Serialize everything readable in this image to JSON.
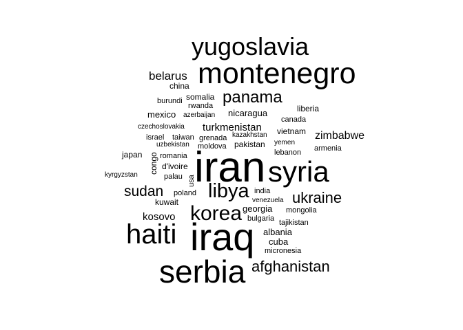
{
  "chart_data": {
    "type": "wordcloud",
    "title": "",
    "words": [
      {
        "text": "iran",
        "weight": 100
      },
      {
        "text": "iraq",
        "weight": 86
      },
      {
        "text": "serbia",
        "weight": 70
      },
      {
        "text": "montenegro",
        "weight": 65
      },
      {
        "text": "syria",
        "weight": 64
      },
      {
        "text": "haiti",
        "weight": 60
      },
      {
        "text": "yugoslavia",
        "weight": 55
      },
      {
        "text": "korea",
        "weight": 45
      },
      {
        "text": "libya",
        "weight": 44
      },
      {
        "text": "panama",
        "weight": 36
      },
      {
        "text": "afghanistan",
        "weight": 33
      },
      {
        "text": "ukraine",
        "weight": 33
      },
      {
        "text": "sudan",
        "weight": 31
      },
      {
        "text": "belarus",
        "weight": 27
      },
      {
        "text": "zimbabwe",
        "weight": 25
      },
      {
        "text": "turkmenistan",
        "weight": 23
      },
      {
        "text": "kosovo",
        "weight": 23
      },
      {
        "text": "cuba",
        "weight": 20
      },
      {
        "text": "mexico",
        "weight": 20
      },
      {
        "text": "nicaragua",
        "weight": 20
      },
      {
        "text": "georgia",
        "weight": 20
      },
      {
        "text": "albania",
        "weight": 20
      },
      {
        "text": "china",
        "weight": 19
      },
      {
        "text": "japan",
        "weight": 19
      },
      {
        "text": "liberia",
        "weight": 19
      },
      {
        "text": "pakistan",
        "weight": 19
      },
      {
        "text": "vietnam",
        "weight": 19
      },
      {
        "text": "d'ivoire",
        "weight": 19
      },
      {
        "text": "somalia",
        "weight": 19
      },
      {
        "text": "kuwait",
        "weight": 19
      },
      {
        "text": "congo",
        "weight": 17
      },
      {
        "text": "israel",
        "weight": 17
      },
      {
        "text": "rwanda",
        "weight": 17
      },
      {
        "text": "taiwan",
        "weight": 17
      },
      {
        "text": "canada",
        "weight": 16
      },
      {
        "text": "grenada",
        "weight": 16
      },
      {
        "text": "palau",
        "weight": 16
      },
      {
        "text": "poland",
        "weight": 16
      },
      {
        "text": "mongolia",
        "weight": 16
      },
      {
        "text": "tajikistan",
        "weight": 16
      },
      {
        "text": "micronesia",
        "weight": 16
      },
      {
        "text": "armenia",
        "weight": 16
      },
      {
        "text": "lebanon",
        "weight": 16
      },
      {
        "text": "bulgaria",
        "weight": 16
      },
      {
        "text": "moldova",
        "weight": 16
      },
      {
        "text": "romania",
        "weight": 16
      },
      {
        "text": "india",
        "weight": 16
      },
      {
        "text": "burundi",
        "weight": 16
      },
      {
        "text": "usa",
        "weight": 16
      },
      {
        "text": "kazakhstan",
        "weight": 15
      },
      {
        "text": "venezuela",
        "weight": 15
      },
      {
        "text": "yemen",
        "weight": 15
      },
      {
        "text": "czechoslovakia",
        "weight": 15
      },
      {
        "text": "uzbekistan",
        "weight": 15
      },
      {
        "text": "azerbaijan",
        "weight": 15
      },
      {
        "text": "kyrgyzstan",
        "weight": 15
      }
    ]
  }
}
